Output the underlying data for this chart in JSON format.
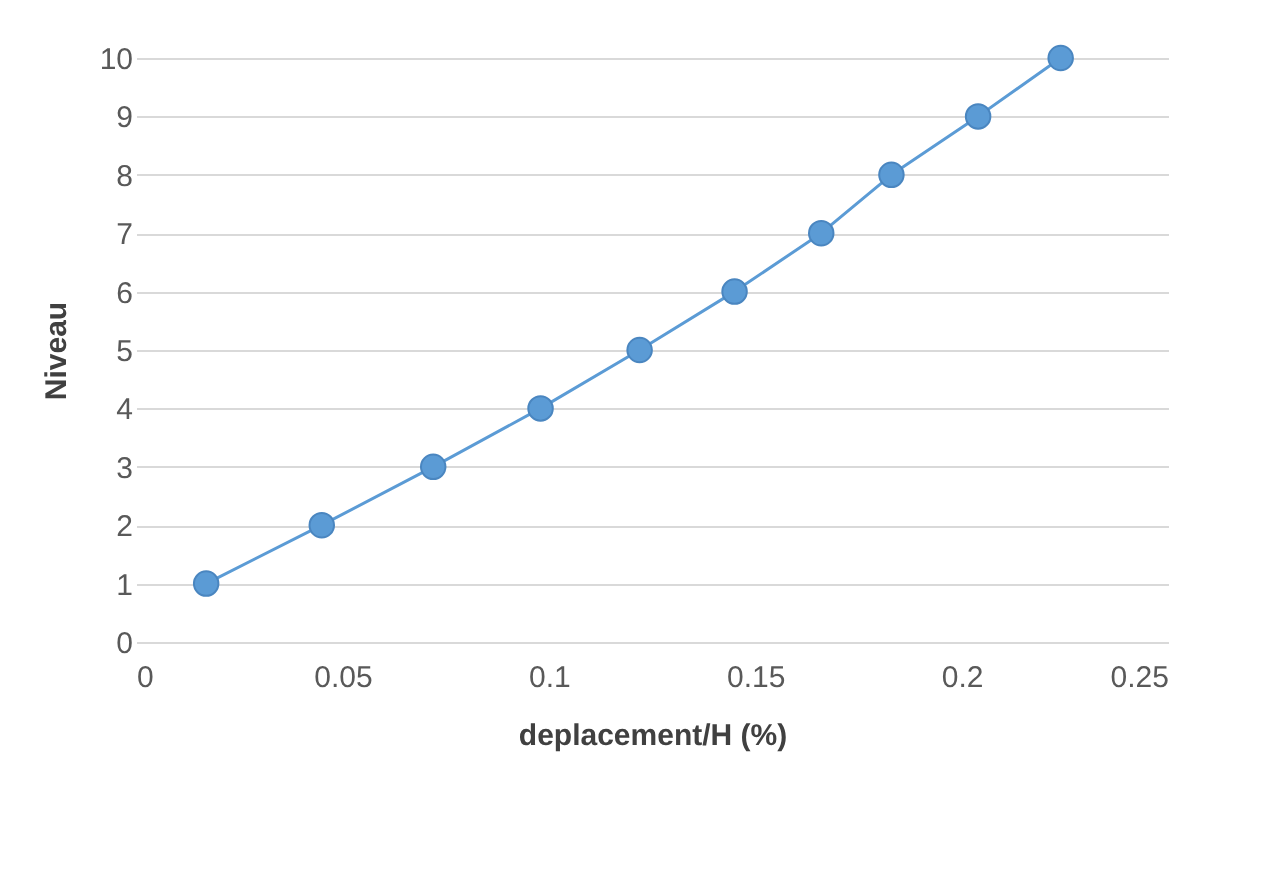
{
  "chart_data": {
    "type": "line",
    "xlabel": "deplacement/H (%)",
    "ylabel": "Niveau",
    "x": [
      0.017,
      0.045,
      0.072,
      0.098,
      0.122,
      0.145,
      0.166,
      0.183,
      0.204,
      0.224
    ],
    "series": [
      {
        "color": "#5b9bd5",
        "values": [
          1,
          2,
          3,
          4,
          5,
          6,
          7,
          8,
          9,
          10
        ]
      }
    ],
    "xlim": [
      0,
      0.25
    ],
    "xticks": [
      0,
      0.05,
      0.1,
      0.15,
      0.2,
      0.25
    ],
    "ylim": [
      0,
      10
    ],
    "yticks": [
      0,
      1,
      2,
      3,
      4,
      5,
      6,
      7,
      8,
      9,
      10
    ],
    "grid": "y",
    "marker": "circle",
    "line_style": "solid",
    "legend": false
  }
}
